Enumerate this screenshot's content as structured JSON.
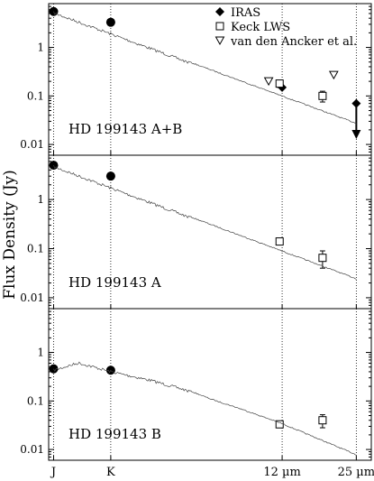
{
  "figure": {
    "ylabel": "Flux Density (Jy)",
    "xticks": [
      {
        "label": "J",
        "um": 1.25
      },
      {
        "label": "K",
        "um": 2.2
      },
      {
        "label": "12 µm",
        "um": 12
      },
      {
        "label": "25 µm",
        "um": 25
      }
    ]
  },
  "legend": {
    "placement": "top-right",
    "entries": [
      {
        "label": "IRAS",
        "marker": "diamond-filled"
      },
      {
        "label": "Keck LWS",
        "marker": "square-open"
      },
      {
        "label": "van den Ancker et al.",
        "marker": "triangle-down-open"
      }
    ]
  },
  "chart_data": [
    {
      "type": "scatter",
      "panel_label": "HD 199143 A+B",
      "yscale": "log",
      "ylim": [
        0.006,
        8
      ],
      "xscale": "log",
      "xlim": [
        1.19,
        29
      ],
      "yticks": [
        "1",
        "0.1",
        "0.01"
      ],
      "series": [
        {
          "name": "IRAS",
          "marker": "diamond-filled",
          "points": [
            {
              "x": 12,
              "y": 0.15
            },
            {
              "x": 25,
              "y": 0.07,
              "upper_limit": true
            }
          ]
        },
        {
          "name": "Keck LWS",
          "marker": "square-open",
          "points": [
            {
              "x": 11.7,
              "y": 0.18,
              "err": 0.03
            },
            {
              "x": 17.9,
              "y": 0.1,
              "err": 0.025
            }
          ]
        },
        {
          "name": "van den Ancker et al.",
          "marker": "triangle-down-open",
          "points": [
            {
              "x": 10.5,
              "y": 0.2
            },
            {
              "x": 20,
              "y": 0.27
            }
          ]
        },
        {
          "marker": "circle-filled",
          "points": [
            {
              "x": 1.25,
              "y": 5.5
            },
            {
              "x": 2.2,
              "y": 3.3
            }
          ]
        },
        {
          "marker": "model-spectrum",
          "points": [
            {
              "x": 1.25,
              "y": 5.5
            },
            {
              "x": 25,
              "y": 0.028
            }
          ]
        }
      ]
    },
    {
      "type": "scatter",
      "panel_label": "HD 199143 A",
      "yscale": "log",
      "ylim": [
        0.006,
        8
      ],
      "xscale": "log",
      "xlim": [
        1.19,
        29
      ],
      "yticks": [
        "1",
        "0.1",
        "0.01"
      ],
      "series": [
        {
          "name": "Keck LWS",
          "marker": "square-open",
          "points": [
            {
              "x": 11.7,
              "y": 0.14,
              "err": 0.02
            },
            {
              "x": 17.9,
              "y": 0.065,
              "err": 0.025
            }
          ]
        },
        {
          "marker": "circle-filled",
          "points": [
            {
              "x": 1.25,
              "y": 5.0
            },
            {
              "x": 2.2,
              "y": 3.0
            }
          ]
        },
        {
          "marker": "model-spectrum",
          "points": [
            {
              "x": 1.25,
              "y": 5.0
            },
            {
              "x": 25,
              "y": 0.025
            }
          ]
        }
      ]
    },
    {
      "type": "scatter",
      "panel_label": "HD 199143 B",
      "yscale": "log",
      "ylim": [
        0.006,
        8
      ],
      "xscale": "log",
      "xlim": [
        1.19,
        29
      ],
      "yticks": [
        "1",
        "0.1",
        "0.01"
      ],
      "series": [
        {
          "name": "Keck LWS",
          "marker": "square-open",
          "points": [
            {
              "x": 11.7,
              "y": 0.033,
              "err": 0.005
            },
            {
              "x": 17.9,
              "y": 0.04,
              "err": 0.012
            }
          ]
        },
        {
          "marker": "circle-filled",
          "points": [
            {
              "x": 1.25,
              "y": 0.46
            },
            {
              "x": 2.2,
              "y": 0.43
            }
          ]
        },
        {
          "marker": "model-spectrum",
          "points": [
            {
              "x": 1.25,
              "y": 0.46
            },
            {
              "x": 1.6,
              "y": 0.65
            },
            {
              "x": 2.2,
              "y": 0.43
            },
            {
              "x": 3.3,
              "y": 0.28
            },
            {
              "x": 4.6,
              "y": 0.18
            },
            {
              "x": 6,
              "y": 0.11
            },
            {
              "x": 8,
              "y": 0.07
            },
            {
              "x": 12,
              "y": 0.035
            },
            {
              "x": 25,
              "y": 0.008
            }
          ]
        }
      ]
    }
  ]
}
